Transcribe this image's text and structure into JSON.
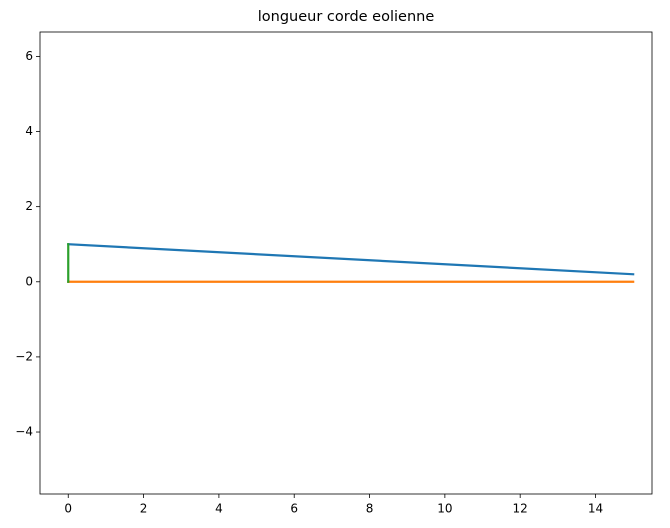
{
  "chart_data": {
    "type": "line",
    "title": "longueur corde eolienne",
    "xlim": [
      -0.75,
      15.5
    ],
    "ylim": [
      -5.65,
      6.65
    ],
    "xticks": [
      0,
      2,
      4,
      6,
      8,
      10,
      12,
      14
    ],
    "yticks": [
      {
        "value": -4,
        "label": "−4"
      },
      {
        "value": -2,
        "label": "−2"
      },
      0,
      2,
      4,
      6
    ],
    "series": [
      {
        "color": "#1f77b4",
        "x": [
          0,
          15
        ],
        "values": [
          1,
          0.2
        ]
      },
      {
        "color": "#ff7f0e",
        "x": [
          0,
          15
        ],
        "values": [
          0,
          0
        ]
      },
      {
        "color": "#2ca02c",
        "x": [
          0,
          0
        ],
        "values": [
          0,
          1
        ]
      }
    ]
  }
}
